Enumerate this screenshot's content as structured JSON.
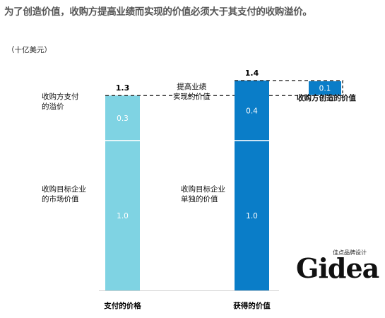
{
  "title": "为了创造价值，收购方提高业绩而实现的价值必须大于其支付的收购溢价。",
  "unit": "（十亿美元）",
  "labels": {
    "left_premium": "收购方支付\n的溢价",
    "left_market": "收购目标企业\n的市场价值",
    "middle_improve": "提高业绩\n实现的价值",
    "middle_standalone": "收购目标企业\n单独的价值",
    "right_created": "收购方创造的价值"
  },
  "logo": {
    "main": "Gidea",
    "sub": "佳点品牌设计"
  },
  "colors": {
    "left_bar": "#7fd3e3",
    "right_bar": "#0a7dc8",
    "created": "#0a7dc8"
  },
  "chart_data": {
    "type": "bar",
    "stacked": true,
    "categories": [
      "支付的价格",
      "获得的价值"
    ],
    "series": [
      {
        "values": [
          1.0,
          1.0
        ]
      },
      {
        "values": [
          0.3,
          0.4
        ]
      }
    ],
    "totals": [
      1.3,
      1.4
    ],
    "created_value": 0.1,
    "segment_labels": [
      [
        "1.0",
        "0.3"
      ],
      [
        "1.0",
        "0.4"
      ]
    ],
    "total_labels": [
      "1.3",
      "1.4"
    ],
    "created_label": "0.1",
    "ylim": [
      0,
      1.4
    ]
  }
}
